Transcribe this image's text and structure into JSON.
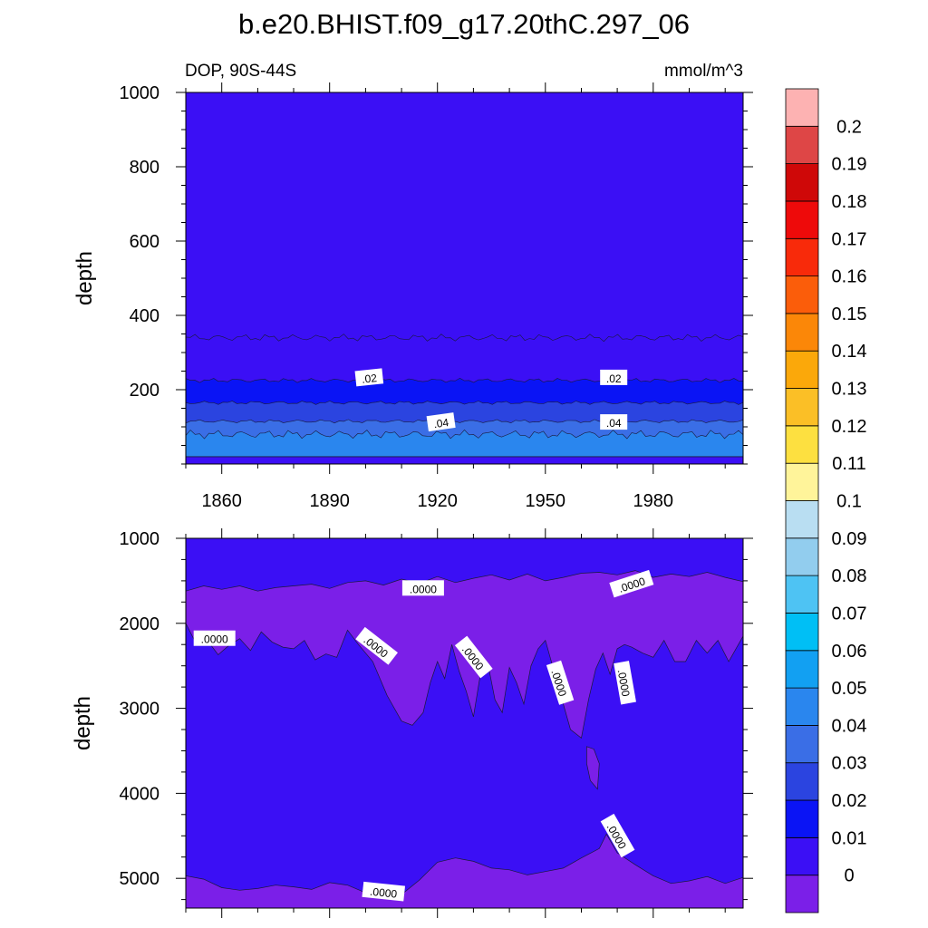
{
  "chart_data": {
    "type": "contour",
    "title": "b.e20.BHIST.f09_g17.20thC.297_06",
    "variable_label": "DOP, 90S-44S",
    "units": "mmol/m^3",
    "ylabel": "depth",
    "x_ticks": [
      1860,
      1890,
      1920,
      1950,
      1980
    ],
    "xlim": [
      1850,
      2005
    ],
    "levels": [
      0,
      0.01,
      0.02,
      0.03,
      0.04,
      0.05,
      0.06,
      0.07,
      0.08,
      0.09,
      0.1,
      0.11,
      0.12,
      0.13,
      0.14,
      0.15,
      0.16,
      0.17,
      0.18,
      0.19,
      0.2
    ],
    "colorbar_labels": [
      "0",
      "0.01",
      "0.02",
      "0.03",
      "0.04",
      "0.05",
      "0.06",
      "0.07",
      "0.08",
      "0.09",
      "0.1",
      "0.11",
      "0.12",
      "0.13",
      "0.14",
      "0.15",
      "0.16",
      "0.17",
      "0.18",
      "0.19",
      "0.2"
    ],
    "colors": [
      "#7b1fe8",
      "#3b0ff5",
      "#0a14f5",
      "#2b44e0",
      "#3a6ee6",
      "#2a86ee",
      "#12a0f2",
      "#00bff5",
      "#4ec3f3",
      "#92cdee",
      "#b9def2",
      "#fff49a",
      "#fde040",
      "#fbbf26",
      "#fba80a",
      "#fb8708",
      "#fb5d0a",
      "#f82a0a",
      "#ee0a0a",
      "#cf0808",
      "#de4646",
      "#fdb2b2"
    ],
    "panels": [
      {
        "name": "upper",
        "ylim": [
          1000,
          0
        ],
        "y_ticks": [
          200,
          400,
          600,
          800,
          1000
        ],
        "y_tick_labels": [
          "200",
          "400",
          "600",
          "800",
          "1000"
        ],
        "top_depth": 20,
        "background_class": 1,
        "bands": [
          {
            "class": 1,
            "boundary_depth": 340,
            "amplitude": 10
          },
          {
            "class": 2,
            "boundary_depth": 225,
            "amplitude": 6
          },
          {
            "class": 3,
            "boundary_depth": 165,
            "amplitude": 5
          },
          {
            "class": 4,
            "boundary_depth": 115,
            "amplitude": 5
          },
          {
            "class": 5,
            "boundary_depth": 80,
            "amplitude": 12
          },
          {
            "class": 6,
            "boundary_depth": 20,
            "amplitude": 0
          }
        ],
        "contour_labels": [
          {
            "text": ".04",
            "x": 1921,
            "y": 112,
            "angle": -8
          },
          {
            "text": ".04",
            "x": 1969,
            "y": 112,
            "angle": 0
          },
          {
            "text": ".02",
            "x": 1901,
            "y": 232,
            "angle": -6
          },
          {
            "text": ".02",
            "x": 1969,
            "y": 232,
            "angle": 0
          }
        ]
      },
      {
        "name": "lower",
        "ylim": [
          1000,
          5350
        ],
        "y_ticks": [
          1000,
          2000,
          3000,
          4000,
          5000
        ],
        "y_tick_labels": [
          "1000",
          "2000",
          "3000",
          "4000",
          "5000"
        ],
        "background_class": 1,
        "zero_upper_boundary": {
          "x": [
            1850,
            1855,
            1860,
            1865,
            1870,
            1875,
            1880,
            1885,
            1890,
            1895,
            1900,
            1905,
            1910,
            1915,
            1920,
            1925,
            1930,
            1935,
            1940,
            1945,
            1950,
            1955,
            1960,
            1965,
            1970,
            1975,
            1980,
            1985,
            1990,
            1995,
            2000,
            2005
          ],
          "depth": [
            1620,
            1560,
            1600,
            1560,
            1620,
            1580,
            1560,
            1540,
            1590,
            1520,
            1500,
            1550,
            1480,
            1530,
            1450,
            1520,
            1470,
            1430,
            1490,
            1420,
            1500,
            1460,
            1410,
            1400,
            1430,
            1380,
            1460,
            1420,
            1450,
            1400,
            1460,
            1510
          ]
        },
        "zero_lower_boundary": {
          "x": [
            1850,
            1853,
            1856,
            1859,
            1862,
            1865,
            1868,
            1871,
            1874,
            1877,
            1880,
            1883,
            1886,
            1889,
            1892,
            1895,
            1898,
            1902,
            1906,
            1910,
            1913,
            1916,
            1918,
            1920,
            1922,
            1924,
            1926,
            1928,
            1930,
            1932,
            1934,
            1936,
            1938,
            1940,
            1942,
            1944,
            1946,
            1948,
            1950,
            1952,
            1954,
            1957,
            1960,
            1962,
            1964,
            1966,
            1968,
            1970,
            1972,
            1974,
            1977,
            1980,
            1983,
            1986,
            1989,
            1992,
            1995,
            1998,
            2001,
            2005
          ],
          "depth": [
            2000,
            2250,
            2200,
            2370,
            2260,
            2180,
            2320,
            2100,
            2220,
            2280,
            2300,
            2200,
            2430,
            2360,
            2400,
            2080,
            2250,
            2450,
            2850,
            3150,
            3200,
            3050,
            2700,
            2450,
            2650,
            2250,
            2560,
            2800,
            3100,
            2580,
            2470,
            2900,
            3050,
            2520,
            2700,
            2950,
            2500,
            2300,
            2200,
            2500,
            2800,
            3250,
            3350,
            2900,
            2540,
            2350,
            2600,
            2300,
            2250,
            2280,
            2350,
            2400,
            2200,
            2450,
            2450,
            2200,
            2350,
            2200,
            2450,
            2150
          ]
        },
        "zero_island": [
          [
            1961.5,
            3450
          ],
          [
            1963.5,
            3480
          ],
          [
            1965,
            3650
          ],
          [
            1964.5,
            3950
          ],
          [
            1962.5,
            3850
          ],
          [
            1961.5,
            3650
          ]
        ],
        "zero_bottom_boundary": {
          "x": [
            1850,
            1855,
            1860,
            1865,
            1870,
            1875,
            1880,
            1885,
            1890,
            1895,
            1900,
            1905,
            1910,
            1915,
            1920,
            1925,
            1930,
            1935,
            1940,
            1945,
            1950,
            1955,
            1960,
            1965,
            1967,
            1970,
            1975,
            1980,
            1985,
            1990,
            1995,
            2000,
            2005
          ],
          "depth": [
            4970,
            5010,
            5110,
            5140,
            5120,
            5080,
            5100,
            5130,
            5050,
            5080,
            5170,
            5220,
            5190,
            5020,
            4810,
            4760,
            4800,
            4880,
            4900,
            4960,
            4920,
            4880,
            4760,
            4650,
            4480,
            4700,
            4840,
            4970,
            5060,
            5030,
            4980,
            5060,
            4990
          ]
        },
        "contour_labels": [
          {
            "text": ".0000",
            "x": 1916,
            "y": 1590,
            "angle": 0
          },
          {
            "text": ".0000",
            "x": 1974,
            "y": 1540,
            "angle": -18
          },
          {
            "text": ".0000",
            "x": 1858,
            "y": 2180,
            "angle": 0
          },
          {
            "text": ".0000",
            "x": 1903,
            "y": 2270,
            "angle": 38
          },
          {
            "text": ".0000",
            "x": 1930,
            "y": 2400,
            "angle": 52
          },
          {
            "text": ".0000",
            "x": 1954,
            "y": 2700,
            "angle": 72
          },
          {
            "text": ".0000",
            "x": 1972,
            "y": 2700,
            "angle": 80
          },
          {
            "text": ".0000",
            "x": 1905,
            "y": 5160,
            "angle": 6
          },
          {
            "text": ".0000",
            "x": 1970,
            "y": 4500,
            "angle": 60
          }
        ]
      }
    ]
  }
}
